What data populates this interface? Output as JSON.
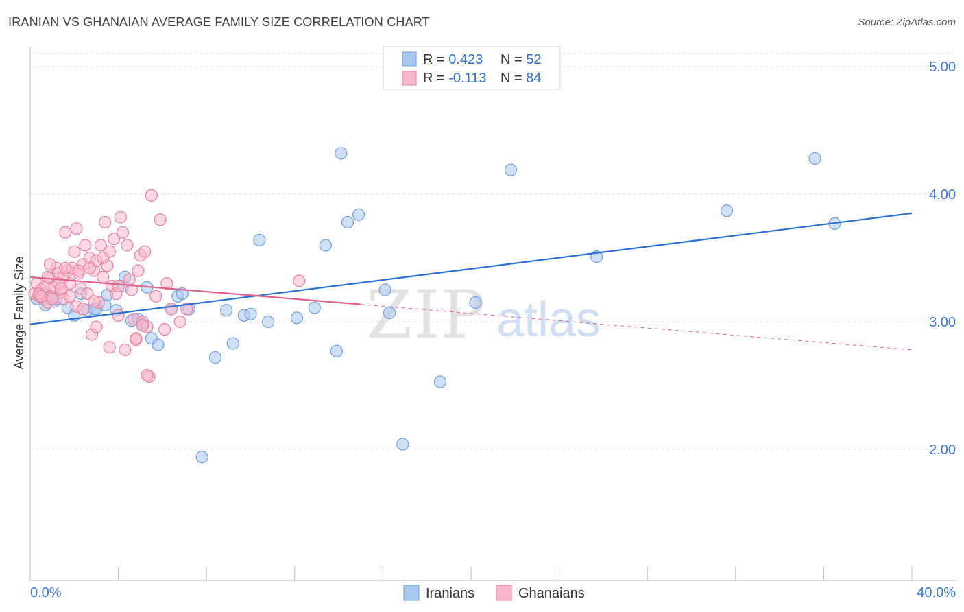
{
  "header": {
    "title": "IRANIAN VS GHANAIAN AVERAGE FAMILY SIZE CORRELATION CHART",
    "source": "Source: ZipAtlas.com"
  },
  "watermark": {
    "zip": "ZIP",
    "atlas": "atlas"
  },
  "chart_data": {
    "type": "scatter",
    "title": "IRANIAN VS GHANAIAN AVERAGE FAMILY SIZE CORRELATION CHART",
    "xlabel": "",
    "ylabel": "Average Family Size",
    "xlim": [
      0,
      40
    ],
    "ylim": [
      1.0,
      5.1
    ],
    "x_tick_labels": {
      "min": "0.0%",
      "max": "40.0%"
    },
    "y_ticks": [
      {
        "value": 5.0,
        "label": "5.00"
      },
      {
        "value": 4.0,
        "label": "4.00"
      },
      {
        "value": 3.0,
        "label": "3.00"
      },
      {
        "value": 2.0,
        "label": "2.00"
      }
    ],
    "grid": true,
    "legend_position": "top-center",
    "stats": [
      {
        "r_label": "R = ",
        "r_value": "0.423",
        "n_label": "N = ",
        "n_value": "52"
      },
      {
        "r_label": "R = ",
        "r_value": "-0.113",
        "n_label": "N = ",
        "n_value": "84"
      }
    ],
    "series": [
      {
        "name": "Iranians",
        "color": "#a9c8f0",
        "stroke": "#6c9fe0",
        "line_color": "#2a6fd1",
        "trend": {
          "x0": 0,
          "y0": 2.98,
          "x1": 40,
          "y1": 3.85,
          "solid_to": 40
        },
        "points": [
          [
            0.3,
            3.18
          ],
          [
            0.6,
            3.22
          ],
          [
            0.7,
            3.13
          ],
          [
            0.9,
            3.2
          ],
          [
            1.1,
            3.16
          ],
          [
            1.7,
            3.11
          ],
          [
            2.0,
            3.05
          ],
          [
            2.3,
            3.22
          ],
          [
            2.6,
            3.09
          ],
          [
            2.9,
            3.1
          ],
          [
            3.4,
            3.13
          ],
          [
            3.5,
            3.21
          ],
          [
            3.9,
            3.09
          ],
          [
            4.2,
            3.28
          ],
          [
            4.3,
            3.35
          ],
          [
            4.6,
            3.01
          ],
          [
            4.9,
            3.02
          ],
          [
            5.1,
            2.98
          ],
          [
            5.3,
            3.27
          ],
          [
            5.5,
            2.87
          ],
          [
            5.8,
            2.82
          ],
          [
            6.4,
            3.1
          ],
          [
            6.7,
            3.2
          ],
          [
            6.9,
            3.22
          ],
          [
            7.2,
            3.1
          ],
          [
            7.8,
            1.94
          ],
          [
            8.4,
            2.72
          ],
          [
            8.9,
            3.09
          ],
          [
            9.2,
            2.83
          ],
          [
            9.7,
            3.05
          ],
          [
            10.0,
            3.06
          ],
          [
            10.4,
            3.64
          ],
          [
            10.8,
            3.0
          ],
          [
            12.1,
            3.03
          ],
          [
            12.9,
            3.11
          ],
          [
            13.4,
            3.6
          ],
          [
            13.9,
            2.77
          ],
          [
            14.1,
            4.32
          ],
          [
            14.4,
            3.78
          ],
          [
            14.9,
            3.84
          ],
          [
            16.1,
            3.25
          ],
          [
            16.3,
            3.07
          ],
          [
            16.9,
            2.04
          ],
          [
            18.6,
            2.53
          ],
          [
            20.2,
            3.15
          ],
          [
            21.8,
            4.19
          ],
          [
            25.7,
            3.51
          ],
          [
            31.6,
            3.87
          ],
          [
            35.6,
            4.28
          ],
          [
            36.5,
            3.77
          ],
          [
            3.0,
            3.1
          ],
          [
            1.2,
            3.18
          ]
        ]
      },
      {
        "name": "Ghanaians",
        "color": "#f7b8cc",
        "stroke": "#e8819f",
        "line_color": "#e0608a",
        "trend": {
          "x0": 0,
          "y0": 3.35,
          "x1": 40,
          "y1": 2.78,
          "solid_to": 15
        },
        "points": [
          [
            0.2,
            3.22
          ],
          [
            0.3,
            3.3
          ],
          [
            0.4,
            3.2
          ],
          [
            0.5,
            3.25
          ],
          [
            0.6,
            3.18
          ],
          [
            0.7,
            3.28
          ],
          [
            0.8,
            3.15
          ],
          [
            0.9,
            3.34
          ],
          [
            1.0,
            3.2
          ],
          [
            1.1,
            3.27
          ],
          [
            1.2,
            3.42
          ],
          [
            1.3,
            3.38
          ],
          [
            1.4,
            3.23
          ],
          [
            1.5,
            3.35
          ],
          [
            1.5,
            3.18
          ],
          [
            1.6,
            3.7
          ],
          [
            1.7,
            3.4
          ],
          [
            1.8,
            3.3
          ],
          [
            1.9,
            3.42
          ],
          [
            2.0,
            3.55
          ],
          [
            2.1,
            3.12
          ],
          [
            2.2,
            3.38
          ],
          [
            2.3,
            3.26
          ],
          [
            2.4,
            3.45
          ],
          [
            2.5,
            3.6
          ],
          [
            2.6,
            3.22
          ],
          [
            2.7,
            3.5
          ],
          [
            2.8,
            2.9
          ],
          [
            2.9,
            3.4
          ],
          [
            3.0,
            3.48
          ],
          [
            3.1,
            3.15
          ],
          [
            3.2,
            3.6
          ],
          [
            3.3,
            3.35
          ],
          [
            3.4,
            3.78
          ],
          [
            3.5,
            3.44
          ],
          [
            3.6,
            3.55
          ],
          [
            3.7,
            3.28
          ],
          [
            3.8,
            3.65
          ],
          [
            3.9,
            3.22
          ],
          [
            4.0,
            3.05
          ],
          [
            4.1,
            3.82
          ],
          [
            4.2,
            3.7
          ],
          [
            4.3,
            2.78
          ],
          [
            4.4,
            3.6
          ],
          [
            4.5,
            3.33
          ],
          [
            4.6,
            3.25
          ],
          [
            4.7,
            3.02
          ],
          [
            4.8,
            2.86
          ],
          [
            4.9,
            3.4
          ],
          [
            5.0,
            3.52
          ],
          [
            5.1,
            3.0
          ],
          [
            5.2,
            3.55
          ],
          [
            5.3,
            2.96
          ],
          [
            5.4,
            2.57
          ],
          [
            5.5,
            3.99
          ],
          [
            5.7,
            3.2
          ],
          [
            5.9,
            3.8
          ],
          [
            6.1,
            2.94
          ],
          [
            6.2,
            3.3
          ],
          [
            6.4,
            3.1
          ],
          [
            6.8,
            3.0
          ],
          [
            7.1,
            3.1
          ],
          [
            2.2,
            3.4
          ],
          [
            1.3,
            3.3
          ],
          [
            0.9,
            3.45
          ],
          [
            3.0,
            2.96
          ],
          [
            2.1,
            3.73
          ],
          [
            2.7,
            3.42
          ],
          [
            1.0,
            3.18
          ],
          [
            1.8,
            3.2
          ],
          [
            3.6,
            2.8
          ],
          [
            5.3,
            2.58
          ],
          [
            4.0,
            3.28
          ],
          [
            0.4,
            3.22
          ],
          [
            0.8,
            3.35
          ],
          [
            1.6,
            3.42
          ],
          [
            2.4,
            3.1
          ],
          [
            3.3,
            3.5
          ],
          [
            4.8,
            2.87
          ],
          [
            5.1,
            2.97
          ],
          [
            12.2,
            3.32
          ],
          [
            0.5,
            3.2
          ],
          [
            2.9,
            3.16
          ],
          [
            1.4,
            3.26
          ]
        ]
      }
    ]
  },
  "bottom_legend": [
    {
      "label": "Iranians"
    },
    {
      "label": "Ghanaians"
    }
  ]
}
